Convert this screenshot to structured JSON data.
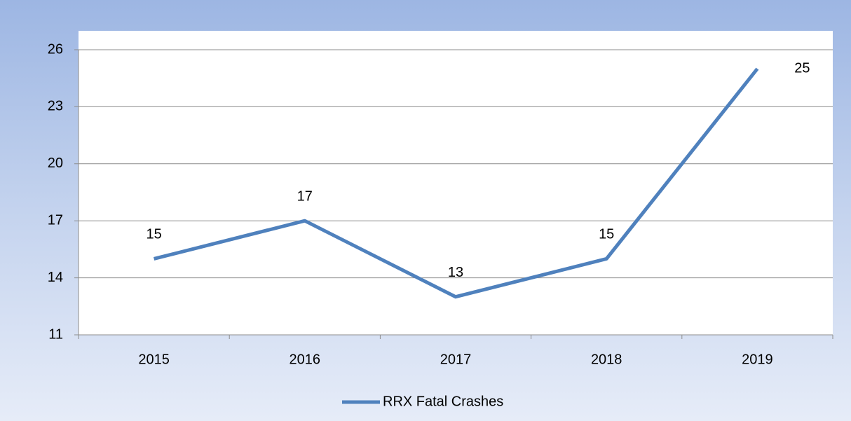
{
  "chart_data": {
    "type": "line",
    "categories": [
      "2015",
      "2016",
      "2017",
      "2018",
      "2019"
    ],
    "series": [
      {
        "name": "RRX Fatal Crashes",
        "color": "#4f81bd",
        "values": [
          15,
          17,
          13,
          15,
          25
        ]
      }
    ],
    "ylim": [
      11,
      26
    ],
    "yticks": [
      11,
      14,
      17,
      20,
      23,
      26
    ],
    "grid": true,
    "legend": "bottom"
  }
}
